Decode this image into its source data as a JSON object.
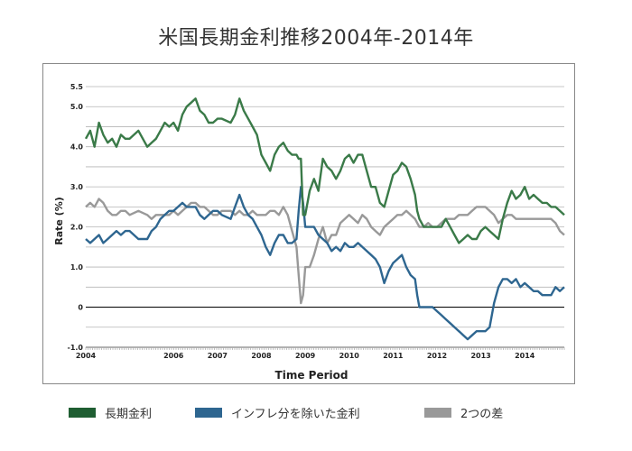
{
  "chart_data": {
    "type": "line",
    "title": "米国長期金利推移2004年-2014年",
    "xlabel": "Time Period",
    "ylabel": "Rate (%)",
    "ylim": [
      -1.0,
      5.5
    ],
    "yticks": [
      -1.0,
      0,
      1.0,
      2.0,
      3.0,
      4.0,
      5.0,
      5.5
    ],
    "ytick_labels": [
      "-1.0",
      "0",
      "1.0",
      "2.0",
      "3.0",
      "4.0",
      "5.0",
      "5.5"
    ],
    "xlim": [
      2004.0,
      2014.9
    ],
    "xticks": [
      2004,
      2006,
      2007,
      2008,
      2009,
      2010,
      2011,
      2012,
      2013,
      2014
    ],
    "xtick_labels": [
      "2004",
      "2006",
      "2007",
      "2008",
      "2009",
      "2010",
      "2011",
      "2012",
      "2013",
      "2014"
    ],
    "grid": true,
    "legend_position": "bottom",
    "series": [
      {
        "name": "長期金利",
        "color": "#3a7a48",
        "x": [
          2004.0,
          2004.1,
          2004.2,
          2004.3,
          2004.4,
          2004.5,
          2004.6,
          2004.7,
          2004.8,
          2004.9,
          2005.0,
          2005.2,
          2005.4,
          2005.5,
          2005.6,
          2005.7,
          2005.8,
          2005.9,
          2006.0,
          2006.1,
          2006.2,
          2006.3,
          2006.4,
          2006.5,
          2006.6,
          2006.7,
          2006.8,
          2006.9,
          2007.0,
          2007.1,
          2007.3,
          2007.4,
          2007.5,
          2007.6,
          2007.7,
          2007.8,
          2007.9,
          2008.0,
          2008.1,
          2008.2,
          2008.3,
          2008.4,
          2008.5,
          2008.6,
          2008.7,
          2008.8,
          2008.85,
          2008.9,
          2008.95,
          2009.0,
          2009.1,
          2009.2,
          2009.3,
          2009.4,
          2009.5,
          2009.6,
          2009.7,
          2009.8,
          2009.9,
          2010.0,
          2010.1,
          2010.2,
          2010.3,
          2010.4,
          2010.5,
          2010.6,
          2010.7,
          2010.8,
          2010.9,
          2011.0,
          2011.1,
          2011.2,
          2011.3,
          2011.4,
          2011.5,
          2011.55,
          2011.6,
          2011.7,
          2011.8,
          2011.9,
          2012.0,
          2012.1,
          2012.2,
          2012.3,
          2012.4,
          2012.5,
          2012.6,
          2012.7,
          2012.8,
          2012.9,
          2013.0,
          2013.1,
          2013.2,
          2013.3,
          2013.4,
          2013.5,
          2013.6,
          2013.7,
          2013.8,
          2013.9,
          2014.0,
          2014.1,
          2014.2,
          2014.3,
          2014.4,
          2014.5,
          2014.6,
          2014.7,
          2014.8,
          2014.9
        ],
        "values": [
          4.2,
          4.4,
          4.0,
          4.6,
          4.3,
          4.1,
          4.2,
          4.0,
          4.3,
          4.2,
          4.2,
          4.4,
          4.0,
          4.1,
          4.2,
          4.4,
          4.6,
          4.5,
          4.6,
          4.4,
          4.8,
          5.0,
          5.1,
          5.2,
          4.9,
          4.8,
          4.6,
          4.6,
          4.7,
          4.7,
          4.6,
          4.8,
          5.2,
          4.9,
          4.7,
          4.5,
          4.3,
          3.8,
          3.6,
          3.4,
          3.8,
          4.0,
          4.1,
          3.9,
          3.8,
          3.8,
          3.7,
          3.7,
          2.3,
          2.3,
          2.9,
          3.2,
          2.9,
          3.7,
          3.5,
          3.4,
          3.2,
          3.4,
          3.7,
          3.8,
          3.6,
          3.8,
          3.8,
          3.4,
          3.0,
          3.0,
          2.6,
          2.5,
          2.9,
          3.3,
          3.4,
          3.6,
          3.5,
          3.2,
          2.8,
          2.4,
          2.2,
          2.0,
          2.0,
          2.0,
          2.0,
          2.0,
          2.2,
          2.0,
          1.8,
          1.6,
          1.7,
          1.8,
          1.7,
          1.7,
          1.9,
          2.0,
          1.9,
          1.8,
          1.7,
          2.2,
          2.6,
          2.9,
          2.7,
          2.8,
          3.0,
          2.7,
          2.8,
          2.7,
          2.6,
          2.6,
          2.5,
          2.5,
          2.4,
          2.3
        ]
      },
      {
        "name": "インフレ分を除いた金利",
        "color": "#2e6690",
        "x": [
          2004.0,
          2004.1,
          2004.2,
          2004.3,
          2004.4,
          2004.5,
          2004.6,
          2004.7,
          2004.8,
          2004.9,
          2005.0,
          2005.2,
          2005.4,
          2005.5,
          2005.6,
          2005.7,
          2005.8,
          2005.9,
          2006.0,
          2006.1,
          2006.2,
          2006.3,
          2006.4,
          2006.5,
          2006.6,
          2006.7,
          2006.8,
          2006.9,
          2007.0,
          2007.1,
          2007.3,
          2007.4,
          2007.5,
          2007.6,
          2007.7,
          2007.8,
          2007.9,
          2008.0,
          2008.1,
          2008.2,
          2008.3,
          2008.4,
          2008.5,
          2008.6,
          2008.7,
          2008.8,
          2008.85,
          2008.9,
          2008.95,
          2009.0,
          2009.1,
          2009.2,
          2009.3,
          2009.4,
          2009.5,
          2009.6,
          2009.7,
          2009.8,
          2009.9,
          2010.0,
          2010.1,
          2010.2,
          2010.3,
          2010.4,
          2010.5,
          2010.6,
          2010.7,
          2010.8,
          2010.9,
          2011.0,
          2011.1,
          2011.2,
          2011.3,
          2011.4,
          2011.5,
          2011.55,
          2011.6,
          2011.7,
          2011.8,
          2011.9,
          2012.0,
          2012.1,
          2012.2,
          2012.3,
          2012.4,
          2012.5,
          2012.6,
          2012.7,
          2012.8,
          2012.9,
          2013.0,
          2013.1,
          2013.2,
          2013.3,
          2013.4,
          2013.5,
          2013.6,
          2013.7,
          2013.8,
          2013.9,
          2014.0,
          2014.1,
          2014.2,
          2014.3,
          2014.4,
          2014.5,
          2014.6,
          2014.7,
          2014.8,
          2014.9
        ],
        "values": [
          1.7,
          1.6,
          1.7,
          1.8,
          1.6,
          1.7,
          1.8,
          1.9,
          1.8,
          1.9,
          1.9,
          1.7,
          1.7,
          1.9,
          2.0,
          2.2,
          2.3,
          2.4,
          2.4,
          2.5,
          2.6,
          2.5,
          2.5,
          2.5,
          2.3,
          2.2,
          2.3,
          2.4,
          2.4,
          2.3,
          2.2,
          2.5,
          2.8,
          2.5,
          2.3,
          2.2,
          2.0,
          1.8,
          1.5,
          1.3,
          1.6,
          1.8,
          1.8,
          1.6,
          1.6,
          1.7,
          2.4,
          3.0,
          2.6,
          2.0,
          2.0,
          2.0,
          1.8,
          1.7,
          1.6,
          1.4,
          1.5,
          1.4,
          1.6,
          1.5,
          1.5,
          1.6,
          1.5,
          1.4,
          1.3,
          1.2,
          1.0,
          0.6,
          0.9,
          1.1,
          1.2,
          1.3,
          1.0,
          0.8,
          0.7,
          0.3,
          0.0,
          0.0,
          0.0,
          0.0,
          -0.1,
          -0.2,
          -0.3,
          -0.4,
          -0.5,
          -0.6,
          -0.7,
          -0.8,
          -0.7,
          -0.6,
          -0.6,
          -0.6,
          -0.5,
          0.1,
          0.5,
          0.7,
          0.7,
          0.6,
          0.7,
          0.5,
          0.6,
          0.5,
          0.4,
          0.4,
          0.3,
          0.3,
          0.3,
          0.5,
          0.4,
          0.5
        ]
      },
      {
        "name": "2つの差",
        "color": "#999999",
        "x": [
          2004.0,
          2004.1,
          2004.2,
          2004.3,
          2004.4,
          2004.5,
          2004.6,
          2004.7,
          2004.8,
          2004.9,
          2005.0,
          2005.2,
          2005.4,
          2005.5,
          2005.6,
          2005.7,
          2005.8,
          2005.9,
          2006.0,
          2006.1,
          2006.2,
          2006.3,
          2006.4,
          2006.5,
          2006.6,
          2006.7,
          2006.8,
          2006.9,
          2007.0,
          2007.1,
          2007.3,
          2007.4,
          2007.5,
          2007.6,
          2007.7,
          2007.8,
          2007.9,
          2008.0,
          2008.1,
          2008.2,
          2008.3,
          2008.4,
          2008.5,
          2008.6,
          2008.7,
          2008.8,
          2008.85,
          2008.9,
          2008.95,
          2009.0,
          2009.1,
          2009.2,
          2009.3,
          2009.4,
          2009.5,
          2009.6,
          2009.7,
          2009.8,
          2009.9,
          2010.0,
          2010.1,
          2010.2,
          2010.3,
          2010.4,
          2010.5,
          2010.6,
          2010.7,
          2010.8,
          2010.9,
          2011.0,
          2011.1,
          2011.2,
          2011.3,
          2011.4,
          2011.5,
          2011.55,
          2011.6,
          2011.7,
          2011.8,
          2011.9,
          2012.0,
          2012.1,
          2012.2,
          2012.3,
          2012.4,
          2012.5,
          2012.6,
          2012.7,
          2012.8,
          2012.9,
          2013.0,
          2013.1,
          2013.2,
          2013.3,
          2013.4,
          2013.5,
          2013.6,
          2013.7,
          2013.8,
          2013.9,
          2014.0,
          2014.1,
          2014.2,
          2014.3,
          2014.4,
          2014.5,
          2014.6,
          2014.7,
          2014.8,
          2014.9
        ],
        "values": [
          2.5,
          2.6,
          2.5,
          2.7,
          2.6,
          2.4,
          2.3,
          2.3,
          2.4,
          2.4,
          2.3,
          2.4,
          2.3,
          2.2,
          2.3,
          2.3,
          2.3,
          2.3,
          2.4,
          2.3,
          2.4,
          2.5,
          2.6,
          2.6,
          2.5,
          2.5,
          2.4,
          2.3,
          2.3,
          2.4,
          2.4,
          2.3,
          2.4,
          2.3,
          2.3,
          2.4,
          2.3,
          2.3,
          2.3,
          2.4,
          2.4,
          2.3,
          2.5,
          2.3,
          1.9,
          1.5,
          0.8,
          0.1,
          0.3,
          1.0,
          1.0,
          1.3,
          1.7,
          2.0,
          1.6,
          1.8,
          1.8,
          2.1,
          2.2,
          2.3,
          2.2,
          2.1,
          2.3,
          2.2,
          2.0,
          1.9,
          1.8,
          2.0,
          2.1,
          2.2,
          2.3,
          2.3,
          2.4,
          2.3,
          2.2,
          2.1,
          2.0,
          2.0,
          2.1,
          2.0,
          2.0,
          2.1,
          2.2,
          2.2,
          2.2,
          2.3,
          2.3,
          2.3,
          2.4,
          2.5,
          2.5,
          2.5,
          2.4,
          2.3,
          2.1,
          2.2,
          2.3,
          2.3,
          2.2,
          2.2,
          2.2,
          2.2,
          2.2,
          2.2,
          2.2,
          2.2,
          2.2,
          2.1,
          1.9,
          1.8
        ]
      }
    ]
  }
}
